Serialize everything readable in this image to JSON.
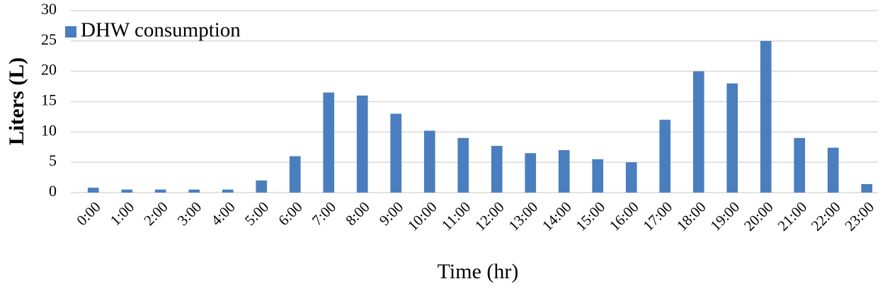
{
  "chart_data": {
    "type": "bar",
    "x_label": "Time (hr)",
    "y_label": "Liters (L)",
    "categories": [
      "0:00",
      "1:00",
      "2:00",
      "3:00",
      "4:00",
      "5:00",
      "6:00",
      "7:00",
      "8:00",
      "9:00",
      "10:00",
      "11:00",
      "12:00",
      "13:00",
      "14:00",
      "15:00",
      "16:00",
      "17:00",
      "18:00",
      "19:00",
      "20:00",
      "21:00",
      "22:00",
      "23:00"
    ],
    "series": [
      {
        "name": "DHW consumption",
        "color": "#4a7ebf",
        "values": [
          0.8,
          0.5,
          0.5,
          0.5,
          0.5,
          2,
          6,
          16.5,
          16,
          13,
          10.2,
          9,
          7.7,
          6.5,
          7,
          5.5,
          5,
          12,
          20,
          18,
          25,
          9,
          7.4,
          1.4
        ]
      }
    ],
    "ylim": [
      0,
      30
    ],
    "yticks": [
      0,
      5,
      10,
      15,
      20,
      25,
      30
    ],
    "grid": true,
    "legend": "upper-left"
  }
}
